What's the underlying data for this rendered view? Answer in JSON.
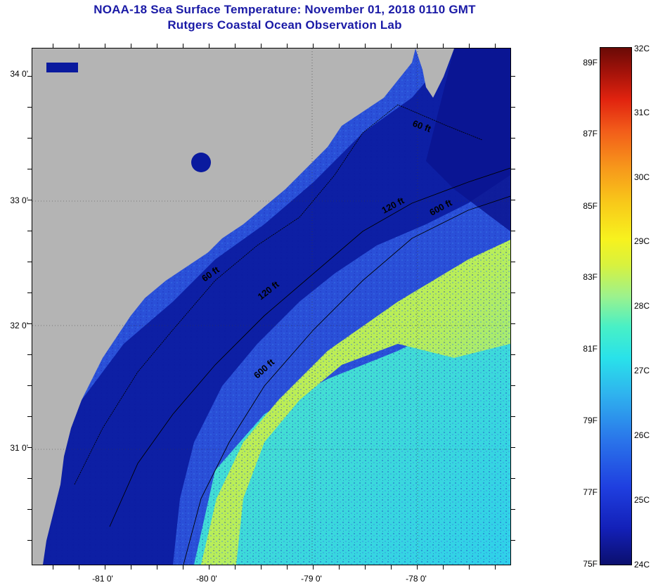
{
  "title": {
    "line1": "NOAA-18 Sea Surface Temperature:  November 01, 2018 0110 GMT",
    "line2": "Rutgers Coastal Ocean Observation Lab"
  },
  "map": {
    "latitude_labels": [
      "34 0'",
      "33 0'",
      "32 0'",
      "31 0'"
    ],
    "longitude_labels": [
      "-81 0'",
      "-80 0'",
      "-79 0'",
      "-78 0'"
    ],
    "contour_labels": [
      "60 ft",
      "120 ft",
      "600 ft",
      "60 ft",
      "120 ft",
      "600 ft"
    ],
    "colors": {
      "land": "#b4b4b4",
      "shelf_water": "#0a1a9e",
      "mid_water": "#2b55e0",
      "warm_water": "#d8ee3a",
      "cyan_water": "#2fe0e0"
    }
  },
  "colorbar": {
    "fahrenheit": [
      "89F",
      "87F",
      "85F",
      "83F",
      "81F",
      "79F",
      "77F",
      "75F"
    ],
    "celsius": [
      "32C",
      "31C",
      "30C",
      "29C",
      "28C",
      "27C",
      "26C",
      "25C",
      "24C"
    ]
  }
}
